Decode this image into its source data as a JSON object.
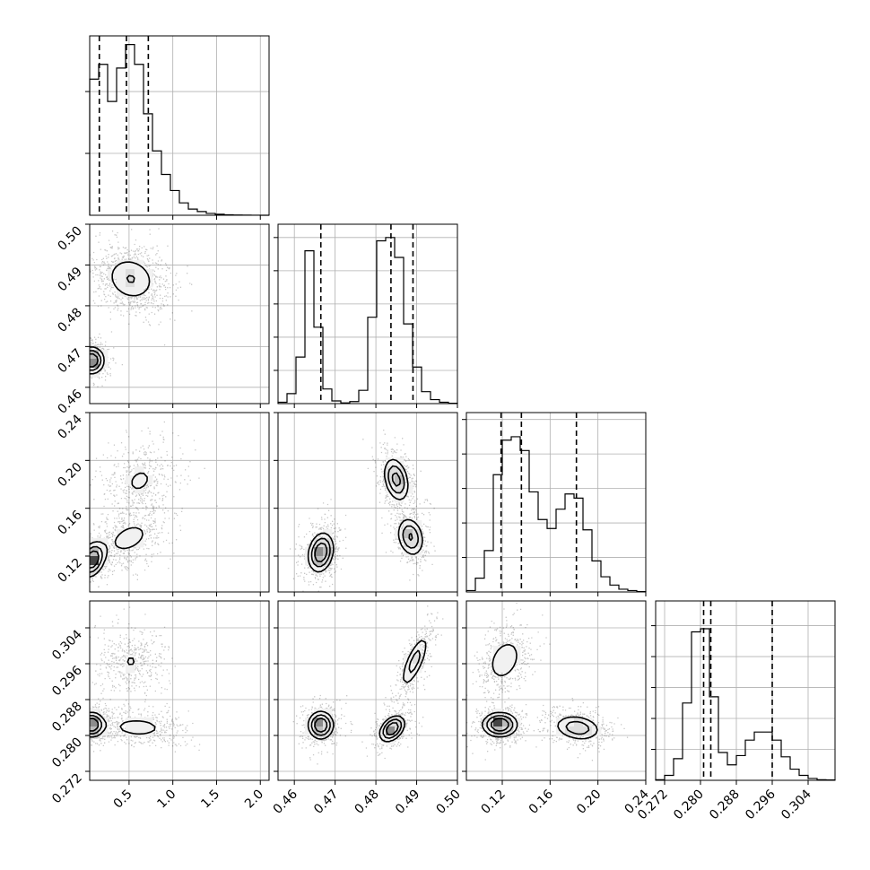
{
  "chart_data": {
    "type": "corner",
    "grid": true,
    "parameters": [
      {
        "range": [
          0.05,
          2.1
        ],
        "ticks": [
          0.5,
          1.0,
          1.5,
          2.0
        ],
        "tick_labels": [
          "0.5",
          "1.0",
          "1.5",
          "2.0"
        ],
        "quantiles": [
          0.16,
          0.47,
          0.72
        ],
        "hist": {
          "edges": [
            0.05,
            0.1525,
            0.255,
            0.3575,
            0.46,
            0.5625,
            0.665,
            0.7675,
            0.87,
            0.9725,
            1.075,
            1.1775,
            1.28,
            1.3825,
            1.485,
            1.5875,
            1.69,
            1.7925,
            1.895,
            1.9975,
            2.1
          ],
          "counts": [
            1.1,
            1.22,
            0.92,
            1.19,
            1.38,
            1.22,
            0.82,
            0.52,
            0.33,
            0.2,
            0.1,
            0.05,
            0.03,
            0.015,
            0.008,
            0.004,
            0.002,
            0.001,
            0.0005,
            0.0002
          ],
          "ymax": 1.45
        }
      },
      {
        "range": [
          0.456,
          0.5
        ],
        "ticks": [
          0.46,
          0.47,
          0.48,
          0.49,
          0.5
        ],
        "tick_labels": [
          "0.46",
          "0.47",
          "0.48",
          "0.49",
          "0.50"
        ],
        "quantiles": [
          0.4665,
          0.4837,
          0.4891
        ],
        "hist": {
          "edges": [
            0.456,
            0.4582,
            0.4604,
            0.4626,
            0.4648,
            0.467,
            0.4692,
            0.4714,
            0.4736,
            0.4758,
            0.478,
            0.4802,
            0.4824,
            0.4846,
            0.4868,
            0.489,
            0.4912,
            0.4934,
            0.4956,
            0.4978,
            0.5
          ],
          "counts": [
            0.02,
            0.15,
            0.7,
            2.3,
            1.15,
            0.22,
            0.04,
            0.01,
            0.03,
            0.2,
            1.3,
            2.45,
            2.5,
            2.2,
            1.2,
            0.55,
            0.18,
            0.06,
            0.02,
            0.005
          ],
          "ymax": 2.7
        }
      },
      {
        "range": [
          0.09,
          0.24
        ],
        "ticks": [
          0.12,
          0.16,
          0.2,
          0.24
        ],
        "tick_labels": [
          "0.12",
          "0.16",
          "0.20",
          "0.24"
        ],
        "quantiles": [
          0.119,
          0.136,
          0.182
        ],
        "hist": {
          "edges": [
            0.09,
            0.0975,
            0.105,
            0.1125,
            0.12,
            0.1275,
            0.135,
            0.1425,
            0.15,
            0.1575,
            0.165,
            0.1725,
            0.18,
            0.1875,
            0.195,
            0.2025,
            0.21,
            0.2175,
            0.225,
            0.2325,
            0.24
          ],
          "counts": [
            0.02,
            0.2,
            0.6,
            1.7,
            2.2,
            2.25,
            2.05,
            1.45,
            1.05,
            0.92,
            1.2,
            1.42,
            1.36,
            0.9,
            0.45,
            0.22,
            0.1,
            0.04,
            0.02,
            0.005
          ],
          "ymax": 2.6
        }
      },
      {
        "range": [
          0.27,
          0.31
        ],
        "ticks": [
          0.272,
          0.28,
          0.288,
          0.296,
          0.304
        ],
        "tick_labels": [
          "0.272",
          "0.280",
          "0.288",
          "0.296",
          "0.304"
        ],
        "quantiles": [
          0.2807,
          0.2823,
          0.296
        ],
        "hist": {
          "edges": [
            0.27,
            0.272,
            0.274,
            0.276,
            0.278,
            0.28,
            0.282,
            0.284,
            0.286,
            0.288,
            0.29,
            0.292,
            0.294,
            0.296,
            0.298,
            0.3,
            0.302,
            0.304,
            0.306,
            0.308,
            0.31
          ],
          "counts": [
            0.01,
            0.08,
            0.35,
            1.25,
            2.4,
            2.45,
            1.35,
            0.45,
            0.25,
            0.4,
            0.65,
            0.78,
            0.78,
            0.65,
            0.38,
            0.18,
            0.08,
            0.03,
            0.01,
            0.005
          ],
          "ymax": 2.9
        }
      }
    ],
    "hist_ticks": [
      [
        0.5,
        1.0
      ],
      [
        0.5,
        1.0,
        1.5,
        2.0,
        2.5
      ],
      [
        0.5,
        1.0,
        1.5,
        2.0,
        2.5
      ],
      [
        0.5,
        1.0,
        1.5,
        2.0,
        2.5
      ]
    ],
    "pairs": [
      {
        "x": 0,
        "y": 1,
        "modes": [
          {
            "center": [
              0.52,
              0.4866
            ],
            "sigma": [
              0.17,
              0.0033
            ],
            "rho": -0.15,
            "weight": 0.62
          },
          {
            "center": [
              0.07,
              0.4666
            ],
            "sigma": [
              0.08,
              0.0018
            ],
            "rho": 0.0,
            "weight": 0.38
          }
        ]
      },
      {
        "x": 0,
        "y": 2,
        "modes": [
          {
            "center": [
              0.08,
              0.117
            ],
            "sigma": [
              0.08,
              0.008
            ],
            "rho": 0.3,
            "weight": 0.38
          },
          {
            "center": [
              0.62,
              0.183
            ],
            "sigma": [
              0.18,
              0.013
            ],
            "rho": 0.25,
            "weight": 0.32
          },
          {
            "center": [
              0.5,
              0.135
            ],
            "sigma": [
              0.18,
              0.01
            ],
            "rho": 0.4,
            "weight": 0.3
          }
        ]
      },
      {
        "x": 1,
        "y": 2,
        "modes": [
          {
            "center": [
              0.4665,
              0.123
            ],
            "sigma": [
              0.0017,
              0.009
            ],
            "rho": 0.2,
            "weight": 0.38
          },
          {
            "center": [
              0.485,
              0.184
            ],
            "sigma": [
              0.0017,
              0.01
            ],
            "rho": -0.3,
            "weight": 0.33
          },
          {
            "center": [
              0.4885,
              0.136
            ],
            "sigma": [
              0.0018,
              0.009
            ],
            "rho": -0.2,
            "weight": 0.29
          }
        ]
      },
      {
        "x": 0,
        "y": 3,
        "modes": [
          {
            "center": [
              0.52,
              0.2965
            ],
            "sigma": [
              0.15,
              0.0032
            ],
            "rho": 0.0,
            "weight": 0.3
          },
          {
            "center": [
              0.07,
              0.2824
            ],
            "sigma": [
              0.08,
              0.0015
            ],
            "rho": 0.0,
            "weight": 0.38
          },
          {
            "center": [
              0.6,
              0.2818
            ],
            "sigma": [
              0.22,
              0.0016
            ],
            "rho": -0.1,
            "weight": 0.32
          }
        ]
      },
      {
        "x": 1,
        "y": 3,
        "modes": [
          {
            "center": [
              0.4665,
              0.2823
            ],
            "sigma": [
              0.0017,
              0.0017
            ],
            "rho": 0.0,
            "weight": 0.38
          },
          {
            "center": [
              0.484,
              0.2815
            ],
            "sigma": [
              0.0017,
              0.0016
            ],
            "rho": 0.4,
            "weight": 0.32
          },
          {
            "center": [
              0.4895,
              0.2965
            ],
            "sigma": [
              0.0019,
              0.0033
            ],
            "rho": 0.75,
            "weight": 0.3
          }
        ]
      },
      {
        "x": 2,
        "y": 3,
        "modes": [
          {
            "center": [
              0.122,
              0.2968
            ],
            "sigma": [
              0.009,
              0.0031
            ],
            "rho": 0.3,
            "weight": 0.3
          },
          {
            "center": [
              0.118,
              0.2824
            ],
            "sigma": [
              0.008,
              0.0015
            ],
            "rho": 0.0,
            "weight": 0.38
          },
          {
            "center": [
              0.183,
              0.2817
            ],
            "sigma": [
              0.011,
              0.0016
            ],
            "rho": -0.2,
            "weight": 0.32
          }
        ]
      }
    ]
  }
}
